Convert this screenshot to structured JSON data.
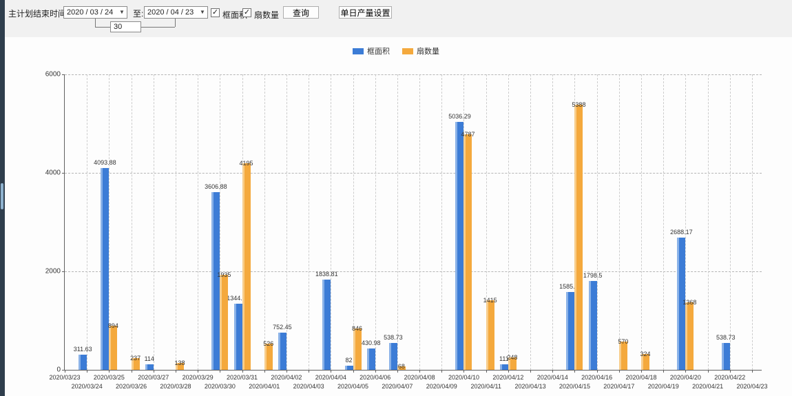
{
  "toolbar": {
    "plan_end_label": "主计划结束时间:",
    "date_from": "2020 / 03 / 24",
    "to_label": "至:",
    "date_to": "2020 / 04 / 23",
    "interval_days": "30",
    "checkboxes": [
      {
        "label": "框面积",
        "checked": true
      },
      {
        "label": "扇数量",
        "checked": true
      }
    ],
    "query_button": "查询",
    "daily_output_button": "单日产量设置"
  },
  "chart_data": {
    "type": "bar",
    "title": "",
    "xlabel": "",
    "ylabel": "",
    "ylim": [
      0,
      6000
    ],
    "yticks": [
      0,
      2000,
      4000,
      6000
    ],
    "grid": "dashed",
    "legend_position": "top-center",
    "categories": [
      "2020/03/23",
      "2020/03/24",
      "2020/03/25",
      "2020/03/26",
      "2020/03/27",
      "2020/03/28",
      "2020/03/29",
      "2020/03/30",
      "2020/03/31",
      "2020/04/01",
      "2020/04/02",
      "2020/04/03",
      "2020/04/04",
      "2020/04/05",
      "2020/04/06",
      "2020/04/07",
      "2020/04/08",
      "2020/04/09",
      "2020/04/10",
      "2020/04/11",
      "2020/04/12",
      "2020/04/13",
      "2020/04/14",
      "2020/04/15",
      "2020/04/16",
      "2020/04/17",
      "2020/04/18",
      "2020/04/19",
      "2020/04/20",
      "2020/04/21",
      "2020/04/22",
      "2020/04/23"
    ],
    "series": [
      {
        "key": "frame-area",
        "name": "框面积",
        "color": "#3c7cd6",
        "highlight": "#8ab2e8",
        "values": [
          null,
          "311.63",
          "4093.88",
          null,
          "114",
          null,
          null,
          "3606.88",
          "1344.95",
          null,
          "752.45",
          null,
          "1838.81",
          "82",
          "430.98",
          "538.73",
          null,
          null,
          "5036.29",
          null,
          "111",
          null,
          null,
          "1585.96",
          "1798.5",
          null,
          null,
          null,
          "2688.17",
          null,
          "538.73",
          null
        ]
      },
      {
        "key": "fan-count",
        "name": "扇数量",
        "color": "#f4a93d",
        "highlight": "#f8cd8a",
        "values": [
          null,
          null,
          "894",
          "237",
          null,
          "138",
          null,
          "1935",
          "4195",
          "526",
          null,
          null,
          null,
          "846",
          null,
          "68",
          null,
          null,
          "4787",
          "1415",
          "248",
          null,
          null,
          "5388",
          null,
          "570",
          "324",
          null,
          "1368",
          null,
          null,
          null
        ]
      }
    ]
  }
}
